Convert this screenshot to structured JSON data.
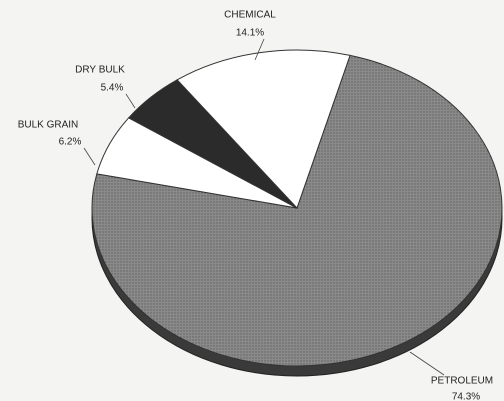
{
  "chart_data": {
    "type": "pie",
    "categories": [
      "PETROLEUM",
      "BULK GRAIN",
      "DRY BULK",
      "CHEMICAL"
    ],
    "values": [
      74.3,
      6.2,
      5.4,
      14.1
    ],
    "value_labels": [
      "74.3%",
      "6.2%",
      "5.4%",
      "14.1%"
    ],
    "colors": [
      "#8a8a8a",
      "#ffffff",
      "#2b2b2b",
      "#ffffff"
    ]
  }
}
